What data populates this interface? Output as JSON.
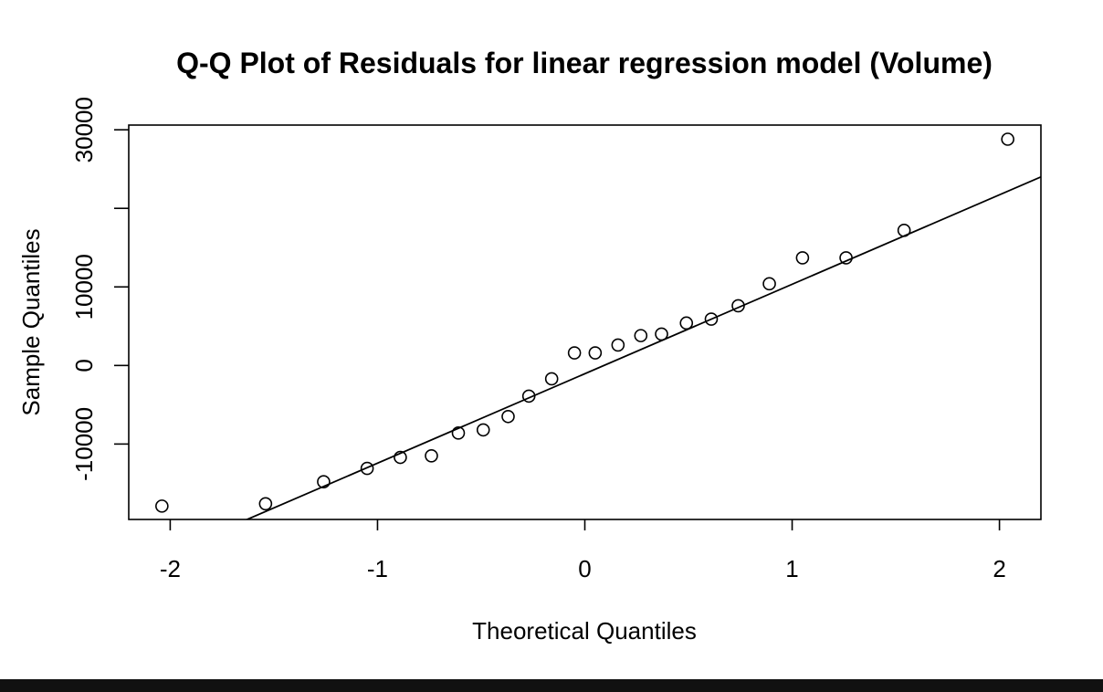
{
  "chart_data": {
    "type": "scatter",
    "title": "Q-Q Plot of Residuals for linear regression model (Volume)",
    "xlabel": "Theoretical Quantiles",
    "ylabel": "Sample Quantiles",
    "xlim": [
      -2.2,
      2.2
    ],
    "ylim": [
      -19600,
      30600
    ],
    "x_ticks": [
      {
        "value": -2,
        "label": "-2"
      },
      {
        "value": -1,
        "label": "-1"
      },
      {
        "value": 0,
        "label": "0"
      },
      {
        "value": 1,
        "label": "1"
      },
      {
        "value": 2,
        "label": "2"
      }
    ],
    "y_ticks": [
      {
        "value": -10000,
        "label": "-10000"
      },
      {
        "value": 0,
        "label": "0"
      },
      {
        "value": 10000,
        "label": "10000"
      },
      {
        "value": 20000,
        "label": ""
      },
      {
        "value": 30000,
        "label": "30000"
      }
    ],
    "grid": false,
    "points": {
      "marker": "open-circle",
      "x": [
        -2.04,
        -1.54,
        -1.26,
        -1.05,
        -0.89,
        -0.74,
        -0.61,
        -0.49,
        -0.37,
        -0.27,
        -0.16,
        -0.05,
        0.05,
        0.16,
        0.27,
        0.37,
        0.49,
        0.61,
        0.74,
        0.89,
        1.05,
        1.26,
        1.54,
        2.04
      ],
      "y": [
        -17900,
        -17600,
        -14800,
        -13100,
        -11700,
        -11500,
        -8600,
        -8200,
        -6500,
        -3900,
        -1700,
        1600,
        1600,
        2600,
        3800,
        4000,
        5400,
        5900,
        7600,
        10400,
        13700,
        13700,
        17200,
        28800
      ]
    },
    "reference_line": {
      "points": [
        [
          -2.2,
          -26100
        ],
        [
          2.2,
          24000
        ]
      ]
    },
    "colors": {
      "background": "#ffffff",
      "ink": "#000000",
      "bottom_band": "#111111"
    }
  }
}
